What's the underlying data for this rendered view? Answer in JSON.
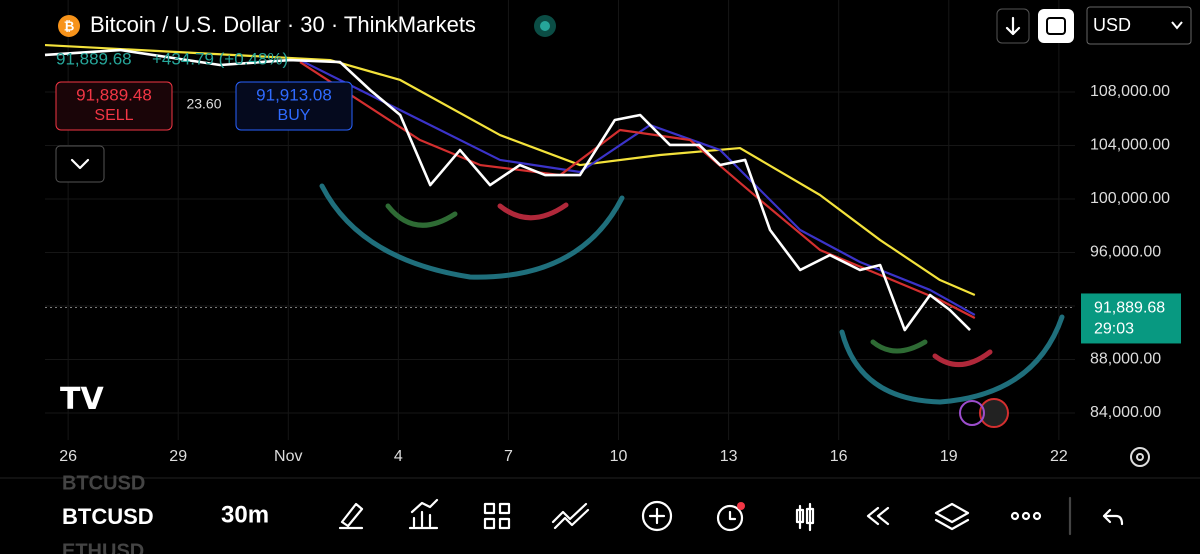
{
  "header": {
    "title": "Bitcoin / U.S. Dollar · 30 · ThinkMarkets",
    "last": "91,889.68",
    "change": "+434.79 (+0.48%)",
    "currency": "USD"
  },
  "trade": {
    "sell_price": "91,889.48",
    "sell_label": "SELL",
    "spread": "23.60",
    "buy_price": "91,913.08",
    "buy_label": "BUY"
  },
  "chart_data": {
    "type": "line",
    "xlim": [
      -0.63,
      27.44
    ],
    "ylim": [
      81980,
      114880
    ],
    "xticks": [
      {
        "value": 0,
        "label": "26"
      },
      {
        "value": 3,
        "label": "29"
      },
      {
        "value": 6,
        "label": "Nov"
      },
      {
        "value": 9,
        "label": "4"
      },
      {
        "value": 12,
        "label": "7"
      },
      {
        "value": 15,
        "label": "10"
      },
      {
        "value": 18,
        "label": "13"
      },
      {
        "value": 21,
        "label": "16"
      },
      {
        "value": 24,
        "label": "19"
      },
      {
        "value": 27,
        "label": "22"
      }
    ],
    "yticks": [
      {
        "value": 84000,
        "label": "84,000.00"
      },
      {
        "value": 88000,
        "label": "88,000.00"
      },
      {
        "value": 92000,
        "label": "92,000.00"
      },
      {
        "value": 96000,
        "label": "96,000.00"
      },
      {
        "value": 100000,
        "label": "100,000.00"
      },
      {
        "value": 104000,
        "label": "104,000.00"
      },
      {
        "value": 108000,
        "label": "108,000.00"
      }
    ],
    "hidden_tick_labels": [
      2
    ],
    "grid": true,
    "current_price": {
      "value": 91889.68,
      "label": "91,889.68"
    },
    "countdown": "29:03",
    "series": [
      {
        "color": "#f3e23b",
        "x": [
          -0.63,
          7.14,
          9.05,
          11.77,
          13.95,
          16.13,
          18.31,
          20.49,
          22.13,
          23.76,
          24.71
        ],
        "values": [
          111510,
          110390,
          108900,
          104780,
          102540,
          103290,
          103810,
          100300,
          96930,
          93940,
          92820
        ]
      },
      {
        "color": "#3b33c9",
        "x": [
          6.32,
          9.59,
          11.77,
          13.95,
          15.86,
          17.77,
          19.95,
          21.58,
          23.49,
          24.71
        ],
        "values": [
          110390,
          105910,
          102920,
          102020,
          105530,
          103660,
          97680,
          95290,
          93200,
          91330
        ]
      },
      {
        "color": "#d32f2f",
        "x": [
          6.32,
          9.59,
          11.23,
          13.41,
          15.04,
          16.95,
          18.86,
          20.49,
          22.13,
          23.76,
          24.71
        ],
        "values": [
          110240,
          104410,
          102540,
          101790,
          105160,
          104410,
          99920,
          96190,
          94320,
          92450,
          91100
        ]
      },
      {
        "color": "#ffffff",
        "x": [
          -0.63,
          1.42,
          4.14,
          6.05,
          7.41,
          8.23,
          9.05,
          9.87,
          10.68,
          11.5,
          12.31,
          13.0,
          13.95,
          14.9,
          15.59,
          16.4,
          17.2,
          17.77,
          18.45,
          19.13,
          19.95,
          20.76,
          21.58,
          22.13,
          22.8,
          23.49,
          24.03,
          24.58
        ],
        "values": [
          110770,
          111140,
          110020,
          110390,
          110240,
          108150,
          106280,
          101040,
          103660,
          101040,
          102540,
          101790,
          101790,
          105910,
          106280,
          104040,
          104040,
          102540,
          102920,
          97680,
          94690,
          95810,
          94690,
          95060,
          90200,
          92820,
          91700,
          90200
        ]
      }
    ]
  },
  "toolbar": {
    "symbol_prev": "BTCUSD",
    "symbol": "BTCUSD",
    "symbol_next": "ETHUSD",
    "interval": "30m"
  }
}
